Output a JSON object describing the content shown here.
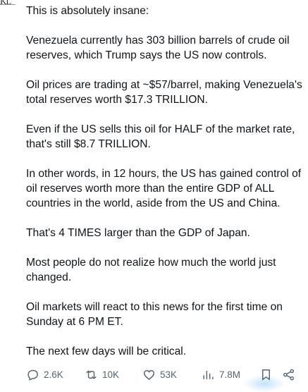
{
  "avatar": {
    "text": "KL"
  },
  "tweet": {
    "paragraphs": [
      "This is absolutely insane:",
      "Venezuela currently has 303 billion barrels of crude oil reserves, which Trump says the US now controls.",
      "Oil prices are trading at ~$57/barrel, making Venezuela's total reserves worth $17.3 TRILLION.",
      "Even if the US sells this oil for HALF of the market rate, that's still $8.7 TRILLION.",
      "In other words, in 12 hours, the US has gained control of oil reserves worth more than the entire GDP of ALL countries in the world, aside from the US and China.",
      "That's 4 TIMES larger than the GDP of Japan.",
      "Most people do not realize how much the world just changed.",
      "Oil markets will react to this news for the first time on Sunday at 6 PM ET.",
      "The next few days will be critical."
    ]
  },
  "actions": {
    "replies": "2.6K",
    "reposts": "10K",
    "likes": "53K",
    "views": "7.8M"
  },
  "icons": {
    "reply": "reply-icon",
    "repost": "repost-icon",
    "like": "heart-icon",
    "views": "views-icon",
    "bookmark": "bookmark-icon",
    "share": "share-icon"
  },
  "colors": {
    "text": "#0f1419",
    "secondary": "#536471",
    "accent": "#1d9bf0"
  }
}
